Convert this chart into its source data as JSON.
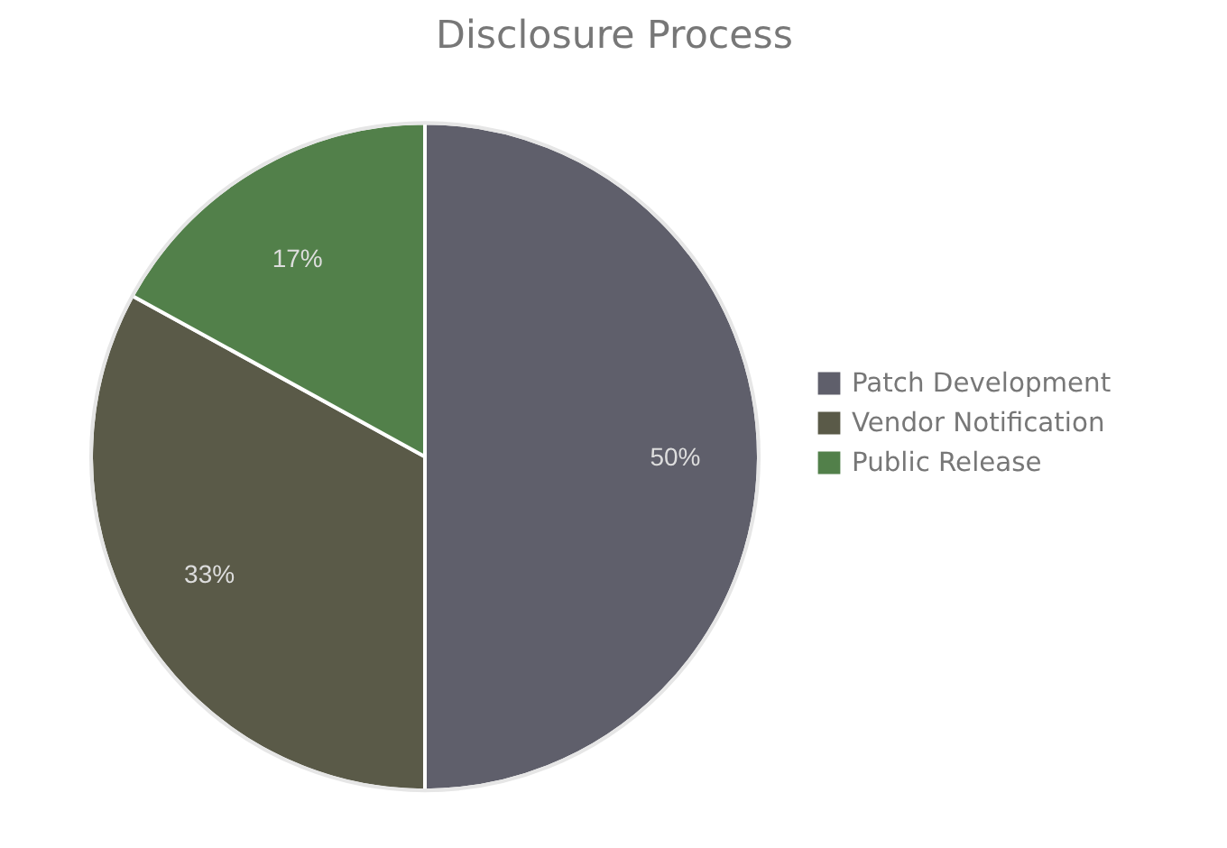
{
  "chart_data": {
    "type": "pie",
    "title": "Disclosure Process",
    "categories": [
      "Patch Development",
      "Vendor Notification",
      "Public Release"
    ],
    "values": [
      50,
      33,
      17
    ],
    "colors": [
      "#5f5f6b",
      "#5a5a48",
      "#52804a"
    ],
    "value_labels": [
      "50%",
      "33%",
      "17%"
    ],
    "legend": "right"
  }
}
